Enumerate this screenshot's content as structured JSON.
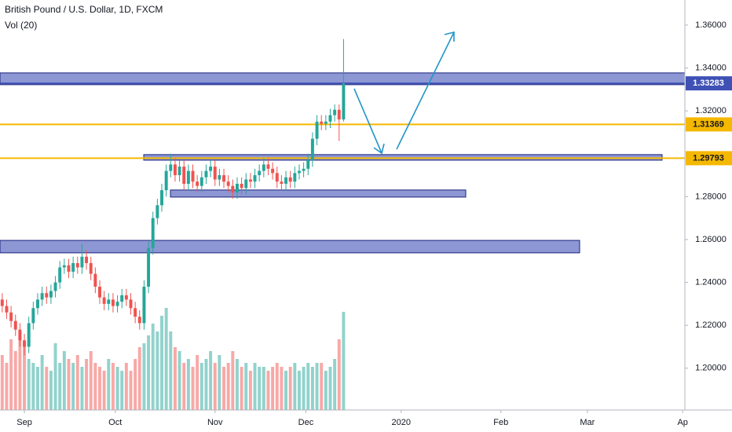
{
  "chart_data": {
    "type": "candlestick",
    "title": "British Pound / U.S. Dollar, 1D, FXCM",
    "subtitle": "Vol (20)",
    "up_color": "#26a69a",
    "down_color": "#ef5350",
    "grid": false,
    "open": [
      1.232,
      1.229,
      1.226,
      1.222,
      1.218,
      1.213,
      1.21,
      1.221,
      1.228,
      1.232,
      1.235,
      1.233,
      1.236,
      1.24,
      1.247,
      1.248,
      1.245,
      1.249,
      1.247,
      1.252,
      1.249,
      1.244,
      1.238,
      1.233,
      1.23,
      1.232,
      1.229,
      1.231,
      1.234,
      1.232,
      1.228,
      1.224,
      1.221,
      1.238,
      1.256,
      1.27,
      1.276,
      1.283,
      1.292,
      1.295,
      1.29,
      1.294,
      1.286,
      1.292,
      1.287,
      1.285,
      1.289,
      1.292,
      1.294,
      1.288,
      1.29,
      1.287,
      1.285,
      1.282,
      1.286,
      1.284,
      1.288,
      1.287,
      1.29,
      1.292,
      1.295,
      1.293,
      1.291,
      1.287,
      1.286,
      1.289,
      1.287,
      1.291,
      1.292,
      1.293,
      1.297,
      1.307,
      1.315,
      1.314,
      1.315,
      1.318,
      1.3205,
      1.316
    ],
    "high": [
      1.235,
      1.232,
      1.229,
      1.225,
      1.221,
      1.216,
      1.224,
      1.231,
      1.235,
      1.238,
      1.238,
      1.239,
      1.243,
      1.25,
      1.251,
      1.251,
      1.252,
      1.252,
      1.258,
      1.255,
      1.252,
      1.247,
      1.241,
      1.236,
      1.235,
      1.235,
      1.234,
      1.237,
      1.237,
      1.235,
      1.231,
      1.227,
      1.241,
      1.259,
      1.273,
      1.279,
      1.286,
      1.295,
      1.3,
      1.298,
      1.297,
      1.297,
      1.295,
      1.295,
      1.29,
      1.292,
      1.295,
      1.297,
      1.297,
      1.293,
      1.293,
      1.29,
      1.288,
      1.289,
      1.289,
      1.291,
      1.291,
      1.293,
      1.295,
      1.298,
      1.298,
      1.296,
      1.294,
      1.29,
      1.292,
      1.292,
      1.294,
      1.295,
      1.296,
      1.3,
      1.31,
      1.318,
      1.318,
      1.318,
      1.321,
      1.323,
      1.323,
      1.3535
    ],
    "low": [
      1.226,
      1.223,
      1.219,
      1.215,
      1.21,
      1.206,
      1.207,
      1.218,
      1.225,
      1.229,
      1.23,
      1.23,
      1.233,
      1.237,
      1.244,
      1.242,
      1.242,
      1.244,
      1.244,
      1.246,
      1.241,
      1.235,
      1.23,
      1.227,
      1.227,
      1.226,
      1.226,
      1.228,
      1.229,
      1.225,
      1.221,
      1.218,
      1.218,
      1.235,
      1.253,
      1.267,
      1.273,
      1.28,
      1.289,
      1.287,
      1.287,
      1.283,
      1.283,
      1.284,
      1.282,
      1.282,
      1.286,
      1.289,
      1.285,
      1.285,
      1.284,
      1.282,
      1.279,
      1.279,
      1.281,
      1.281,
      1.284,
      1.284,
      1.287,
      1.289,
      1.29,
      1.288,
      1.284,
      1.283,
      1.283,
      1.284,
      1.284,
      1.288,
      1.289,
      1.29,
      1.294,
      1.304,
      1.311,
      1.311,
      1.312,
      1.315,
      1.306,
      1.315
    ],
    "close": [
      1.229,
      1.226,
      1.222,
      1.218,
      1.213,
      1.21,
      1.221,
      1.228,
      1.232,
      1.235,
      1.233,
      1.236,
      1.24,
      1.247,
      1.248,
      1.245,
      1.249,
      1.247,
      1.252,
      1.249,
      1.244,
      1.238,
      1.233,
      1.23,
      1.232,
      1.229,
      1.231,
      1.234,
      1.232,
      1.228,
      1.224,
      1.221,
      1.238,
      1.256,
      1.27,
      1.276,
      1.283,
      1.292,
      1.295,
      1.29,
      1.294,
      1.286,
      1.292,
      1.287,
      1.285,
      1.289,
      1.292,
      1.294,
      1.288,
      1.29,
      1.287,
      1.285,
      1.282,
      1.286,
      1.284,
      1.288,
      1.287,
      1.29,
      1.292,
      1.295,
      1.293,
      1.291,
      1.287,
      1.286,
      1.289,
      1.287,
      1.291,
      1.292,
      1.293,
      1.297,
      1.307,
      1.315,
      1.314,
      1.315,
      1.318,
      1.3205,
      1.316,
      1.3328
    ],
    "volume": [
      70,
      60,
      90,
      75,
      100,
      85,
      65,
      60,
      55,
      70,
      55,
      50,
      85,
      60,
      75,
      65,
      60,
      70,
      55,
      65,
      75,
      60,
      55,
      50,
      65,
      60,
      55,
      50,
      60,
      50,
      65,
      80,
      85,
      95,
      110,
      100,
      120,
      130,
      100,
      80,
      75,
      60,
      65,
      55,
      70,
      60,
      65,
      75,
      60,
      70,
      55,
      60,
      75,
      65,
      55,
      60,
      50,
      60,
      55,
      55,
      50,
      55,
      60,
      55,
      50,
      55,
      60,
      50,
      55,
      60,
      55,
      60,
      60,
      50,
      55,
      65,
      90,
      125
    ],
    "xlim": [
      -0.5,
      154
    ],
    "xticks": [
      {
        "value": 5,
        "label": "Sep"
      },
      {
        "value": 25.5,
        "label": "Oct"
      },
      {
        "value": 48,
        "label": "Nov"
      },
      {
        "value": 68.5,
        "label": "Dec"
      },
      {
        "value": 90,
        "label": "2020"
      },
      {
        "value": 112.5,
        "label": "Feb"
      },
      {
        "value": 132,
        "label": "Mar"
      },
      {
        "value": 153.5,
        "label": "Ap"
      }
    ],
    "ylim": [
      1.1805,
      1.3717
    ],
    "yticks": [
      {
        "value": 1.36,
        "label": "1.36000"
      },
      {
        "value": 1.34,
        "label": "1.34000"
      },
      {
        "value": 1.32,
        "label": "1.32000"
      },
      {
        "value": 1.28,
        "label": "1.28000"
      },
      {
        "value": 1.26,
        "label": "1.26000"
      },
      {
        "value": 1.24,
        "label": "1.24000"
      },
      {
        "value": 1.22,
        "label": "1.22000"
      },
      {
        "value": 1.2,
        "label": "1.20000"
      }
    ],
    "zones": [
      {
        "from": 1.3322,
        "to": 1.3377
      },
      {
        "from": 1.297,
        "to": 1.2996
      },
      {
        "from": 1.2798,
        "to": 1.2831
      },
      {
        "from": 1.2538,
        "to": 1.2596
      }
    ],
    "zone_color": "#5c6bc0",
    "levels": [
      {
        "value": 1.33283,
        "color": "#3f51b5",
        "text_color": "#ffffff"
      },
      {
        "value": 1.31369,
        "color": "#f5b800",
        "text_color": "#131722"
      },
      {
        "value": 1.29793,
        "color": "#f5b800",
        "text_color": "#131722"
      }
    ]
  }
}
